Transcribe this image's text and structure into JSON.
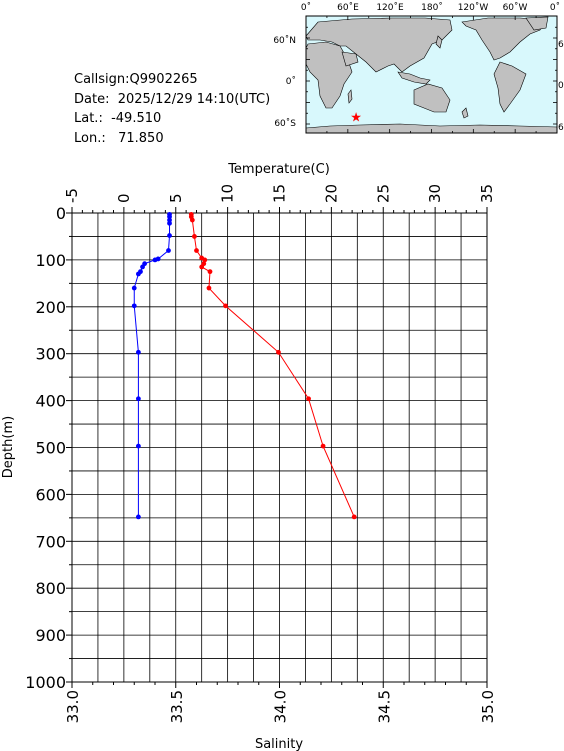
{
  "info": {
    "callsign": "Callsign:Q9902265",
    "date": "Date:  2025/12/29 14:10(UTC)",
    "lat": "Lat.:  -49.510",
    "lon": "Lon.:   71.850"
  },
  "map": {
    "lon_labels": [
      "0˚",
      "60˚E",
      "120˚E",
      "180˚",
      "120˚W",
      "60˚W",
      "0˚"
    ],
    "lat_labels": [
      "60˚N",
      "0˚",
      "60˚S"
    ],
    "station": {
      "lat": -49.51,
      "lon": 71.85
    },
    "colors": {
      "ocean": "#d8f8fc",
      "land": "#c0c0c0",
      "marker": "#ff0000"
    }
  },
  "chart_data": {
    "type": "line",
    "title": "",
    "ylabel": "Depth(m)",
    "ylim": [
      0,
      1000
    ],
    "y_ticks": [
      "0",
      "100",
      "200",
      "300",
      "400",
      "500",
      "600",
      "700",
      "800",
      "900",
      "1000"
    ],
    "y_inverted": true,
    "temperature_axis": {
      "label": "Temperature(C)",
      "range": [
        -5,
        35
      ],
      "ticks": [
        "-5",
        "0",
        "5",
        "10",
        "15",
        "20",
        "25",
        "30",
        "35"
      ]
    },
    "salinity_axis": {
      "label": "Salinity",
      "range": [
        33.0,
        35.0
      ],
      "ticks": [
        "33.0",
        "33.5",
        "34.0",
        "34.5",
        "35.0"
      ]
    },
    "grid": true,
    "series": [
      {
        "name": "Temperature",
        "axis": "temperature",
        "color": "#ff0000",
        "points": [
          [
            6.5,
            3
          ],
          [
            6.5,
            8
          ],
          [
            6.6,
            15
          ],
          [
            6.8,
            50
          ],
          [
            7.0,
            80
          ],
          [
            7.5,
            96
          ],
          [
            7.8,
            100
          ],
          [
            7.7,
            108
          ],
          [
            7.5,
            115
          ],
          [
            8.3,
            125
          ],
          [
            8.2,
            160
          ],
          [
            9.8,
            198
          ],
          [
            14.9,
            297
          ],
          [
            17.8,
            396
          ],
          [
            19.2,
            497
          ],
          [
            22.2,
            648
          ]
        ]
      },
      {
        "name": "Salinity",
        "axis": "salinity",
        "color": "#0000ff",
        "points": [
          [
            33.47,
            3
          ],
          [
            33.47,
            8
          ],
          [
            33.47,
            15
          ],
          [
            33.47,
            22
          ],
          [
            33.47,
            48
          ],
          [
            33.465,
            80
          ],
          [
            33.415,
            98
          ],
          [
            33.4,
            100
          ],
          [
            33.35,
            108
          ],
          [
            33.34,
            115
          ],
          [
            33.33,
            125
          ],
          [
            33.32,
            130
          ],
          [
            33.3,
            160
          ],
          [
            33.3,
            198
          ],
          [
            33.32,
            297
          ],
          [
            33.32,
            396
          ],
          [
            33.32,
            497
          ],
          [
            33.32,
            648
          ]
        ]
      }
    ]
  }
}
